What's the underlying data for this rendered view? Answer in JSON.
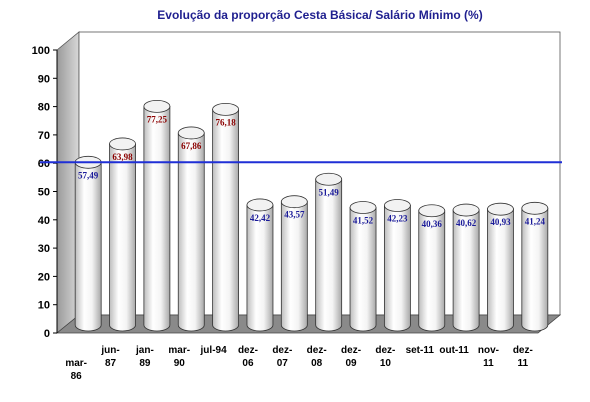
{
  "chart_data": {
    "type": "bar",
    "title": "Evolução da proporção Cesta Básica/ Salário Mínimo (%)",
    "categories": [
      [
        "mar-",
        "86"
      ],
      [
        "jun-",
        "87"
      ],
      [
        "jan-",
        "89"
      ],
      [
        "mar-",
        "90"
      ],
      [
        "jul-94"
      ],
      [
        "dez-",
        "06"
      ],
      [
        "dez-",
        "07"
      ],
      [
        "dez-",
        "08"
      ],
      [
        "dez-",
        "09"
      ],
      [
        "dez-",
        "10"
      ],
      [
        "set-11"
      ],
      [
        "out-11"
      ],
      [
        "nov-",
        "11"
      ],
      [
        "dez-",
        "11"
      ]
    ],
    "values": [
      57.49,
      63.98,
      77.25,
      67.86,
      76.18,
      42.42,
      43.57,
      51.49,
      41.52,
      42.23,
      40.36,
      40.62,
      40.93,
      41.24
    ],
    "value_labels": [
      "57,49",
      "63,98",
      "77,25",
      "67,86",
      "76,18",
      "42,42",
      "43,57",
      "51,49",
      "41,52",
      "42,23",
      "40,36",
      "40,62",
      "40,93",
      "41,24"
    ],
    "label_colors": [
      "#1a1a99",
      "#8b0000",
      "#8b0000",
      "#8b0000",
      "#8b0000",
      "#1a1a99",
      "#1a1a99",
      "#1a1a99",
      "#1a1a99",
      "#1a1a99",
      "#1a1a99",
      "#1a1a99",
      "#1a1a99",
      "#1a1a99"
    ],
    "ylim": [
      0,
      100
    ],
    "yticks": [
      0,
      10,
      20,
      30,
      40,
      50,
      60,
      70,
      80,
      90,
      100
    ],
    "reference_line": 57.49,
    "reference_line_color": "#1f2fd6",
    "style": "3d-cylinder",
    "gridlines": false
  }
}
